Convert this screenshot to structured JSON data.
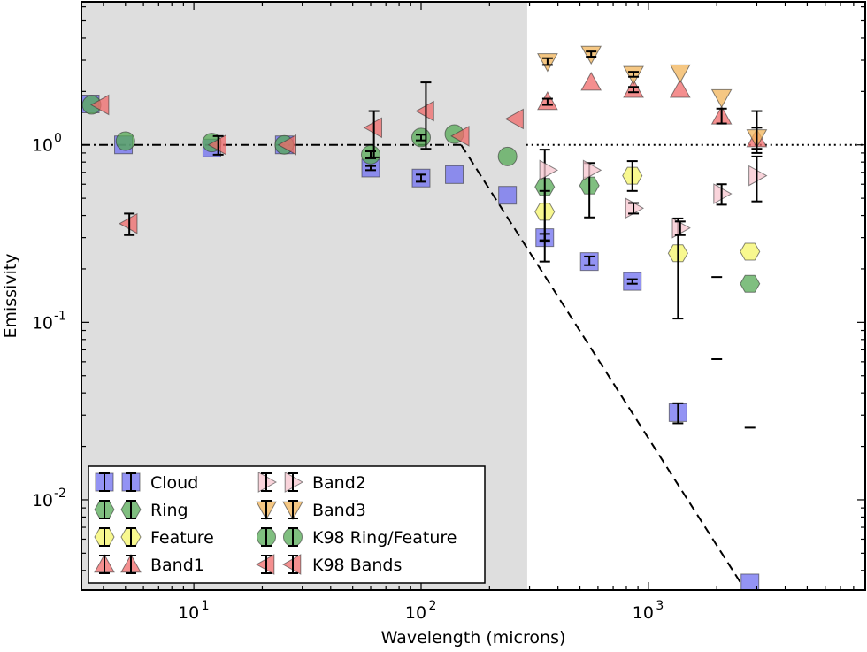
{
  "chart_data": {
    "type": "scatter",
    "xlabel": "Wavelength (microns)",
    "ylabel": "Emissivity",
    "xscale": "log",
    "yscale": "log",
    "xlim": [
      3.2,
      9000
    ],
    "ylim": [
      0.0031,
      6.4
    ],
    "x_ticks": [
      {
        "value": 10,
        "base": "10",
        "exp": "1"
      },
      {
        "value": 100,
        "base": "10",
        "exp": "2"
      },
      {
        "value": 1000,
        "base": "10",
        "exp": "3"
      }
    ],
    "y_ticks": [
      {
        "value": 0.01,
        "base": "10",
        "exp": "-2"
      },
      {
        "value": 0.1,
        "base": "10",
        "exp": "-1"
      },
      {
        "value": 1,
        "base": "10",
        "exp": "0"
      }
    ],
    "shaded_region": {
      "x_range": [
        3.2,
        290
      ],
      "color": "#dedede"
    },
    "reference_lines": [
      {
        "kind": "dashdot",
        "x": [
          3.2,
          150
        ],
        "y": [
          1,
          1
        ]
      },
      {
        "kind": "dotted",
        "x": [
          290,
          9000
        ],
        "y": [
          1,
          1
        ]
      },
      {
        "kind": "dashed",
        "x": [
          150,
          2550
        ],
        "y": [
          1,
          0.0034
        ]
      }
    ],
    "legend_position": "lower-left",
    "colors": {
      "Cloud": "#6f6ff0",
      "Ring": "#55aa55",
      "Feature": "#f5f56a",
      "Band1": "#f06a6a",
      "Band2": "#f7c6cf",
      "Band3": "#f2b45a",
      "K98 Ring/Feature": "#55aa55",
      "K98 Bands": "#f06a6a"
    },
    "series": [
      {
        "name": "Cloud",
        "marker": "square",
        "color": "#6f6ff0",
        "points": [
          {
            "x": 3.5,
            "y": 1.7
          },
          {
            "x": 4.9,
            "y": 1.0
          },
          {
            "x": 12,
            "y": 0.96
          },
          {
            "x": 25,
            "y": 1.0
          },
          {
            "x": 60,
            "y": 0.74,
            "err": [
              0.72,
              0.76
            ]
          },
          {
            "x": 100,
            "y": 0.65,
            "err": [
              0.62,
              0.68
            ]
          },
          {
            "x": 140,
            "y": 0.68
          },
          {
            "x": 240,
            "y": 0.52
          },
          {
            "x": 350,
            "y": 0.3,
            "err": [
              0.285,
              0.315
            ]
          },
          {
            "x": 550,
            "y": 0.22,
            "err": [
              0.21,
              0.235
            ]
          },
          {
            "x": 850,
            "y": 0.17,
            "err": [
              0.165,
              0.175
            ]
          },
          {
            "x": 1350,
            "y": 0.031,
            "err": [
              0.027,
              0.035
            ]
          },
          {
            "x": 2800,
            "y": 0.0034
          }
        ]
      },
      {
        "name": "Ring",
        "marker": "hexagon",
        "color": "#55aa55",
        "points": [
          {
            "x": 350,
            "y": 0.58,
            "err": [
              0.22,
              0.94
            ]
          },
          {
            "x": 550,
            "y": 0.59,
            "err": [
              0.39,
              0.79
            ]
          },
          {
            "x": 2800,
            "y": 0.165
          }
        ]
      },
      {
        "name": "Feature",
        "marker": "hexagon",
        "color": "#f5f56a",
        "points": [
          {
            "x": 350,
            "y": 0.42,
            "err": [
              0.29,
              0.55
            ]
          },
          {
            "x": 850,
            "y": 0.67,
            "err": [
              0.55,
              0.81
            ]
          },
          {
            "x": 1350,
            "y": 0.245,
            "err": [
              0.105,
              0.385
            ]
          },
          {
            "x": 2800,
            "y": 0.25
          }
        ]
      },
      {
        "name": "Band1",
        "marker": "triangle-up",
        "color": "#f06a6a",
        "points": [
          {
            "x": 360,
            "y": 1.75,
            "err": [
              1.68,
              1.82
            ]
          },
          {
            "x": 560,
            "y": 2.25
          },
          {
            "x": 860,
            "y": 2.05,
            "err": [
              1.98,
              2.12
            ]
          },
          {
            "x": 1380,
            "y": 2.05
          },
          {
            "x": 2100,
            "y": 1.45,
            "err": [
              1.32,
              1.6
            ]
          },
          {
            "x": 3000,
            "y": 1.08,
            "err": [
              0.95,
              1.25
            ]
          }
        ]
      },
      {
        "name": "Band2",
        "marker": "triangle-right",
        "color": "#f7c6cf",
        "points": [
          {
            "x": 360,
            "y": 0.72
          },
          {
            "x": 560,
            "y": 0.72
          },
          {
            "x": 860,
            "y": 0.44,
            "err": [
              0.41,
              0.47
            ]
          },
          {
            "x": 1380,
            "y": 0.34,
            "err": [
              0.31,
              0.37
            ]
          },
          {
            "x": 2100,
            "y": 0.53,
            "err": [
              0.46,
              0.6
            ]
          },
          {
            "x": 3000,
            "y": 0.67,
            "err": [
              0.48,
              0.86
            ]
          }
        ]
      },
      {
        "name": "Band3",
        "marker": "triangle-down",
        "color": "#f2b45a",
        "points": [
          {
            "x": 360,
            "y": 2.95,
            "err": [
              2.82,
              3.08
            ]
          },
          {
            "x": 560,
            "y": 3.25,
            "err": [
              3.14,
              3.36
            ]
          },
          {
            "x": 860,
            "y": 2.5,
            "err": [
              2.42,
              2.58
            ]
          },
          {
            "x": 1380,
            "y": 2.55
          },
          {
            "x": 2100,
            "y": 1.85
          },
          {
            "x": 3000,
            "y": 1.1,
            "err": [
              0.9,
              1.55
            ]
          }
        ]
      },
      {
        "name": "K98 Ring/Feature",
        "marker": "circle",
        "color": "#55aa55",
        "points": [
          {
            "x": 3.55,
            "y": 1.68
          },
          {
            "x": 5.0,
            "y": 1.05
          },
          {
            "x": 12,
            "y": 1.03
          },
          {
            "x": 25,
            "y": 1.0
          },
          {
            "x": 60,
            "y": 0.88,
            "err": [
              0.84,
              0.92
            ]
          },
          {
            "x": 100,
            "y": 1.1,
            "err": [
              1.06,
              1.14
            ]
          },
          {
            "x": 140,
            "y": 1.15
          },
          {
            "x": 240,
            "y": 0.86
          }
        ]
      },
      {
        "name": "K98 Bands",
        "marker": "triangle-left",
        "color": "#f06a6a",
        "points": [
          {
            "x": 3.9,
            "y": 1.68
          },
          {
            "x": 5.2,
            "y": 0.36,
            "err": [
              0.31,
              0.41
            ]
          },
          {
            "x": 12.8,
            "y": 1.0,
            "err": [
              0.88,
              1.12
            ]
          },
          {
            "x": 26,
            "y": 1.0
          },
          {
            "x": 62,
            "y": 1.25,
            "err": [
              0.85,
              1.55
            ]
          },
          {
            "x": 105,
            "y": 1.55,
            "err": [
              0.95,
              2.25
            ]
          },
          {
            "x": 150,
            "y": 1.12
          },
          {
            "x": 260,
            "y": 1.4
          }
        ]
      }
    ],
    "extra_marks": [
      {
        "kind": "dash",
        "x": 2000,
        "y": 0.18
      },
      {
        "kind": "dash",
        "x": 2000,
        "y": 0.062
      },
      {
        "kind": "dash",
        "x": 2800,
        "y": 0.0255
      }
    ],
    "legend": [
      {
        "label": "Cloud",
        "series": "Cloud"
      },
      {
        "label": "Ring",
        "series": "Ring"
      },
      {
        "label": "Feature",
        "series": "Feature"
      },
      {
        "label": "Band1",
        "series": "Band1"
      },
      {
        "label": "Band2",
        "series": "Band2"
      },
      {
        "label": "Band3",
        "series": "Band3"
      },
      {
        "label": "K98 Ring/Feature",
        "series": "K98 Ring/Feature"
      },
      {
        "label": "K98 Bands",
        "series": "K98 Bands"
      }
    ]
  }
}
